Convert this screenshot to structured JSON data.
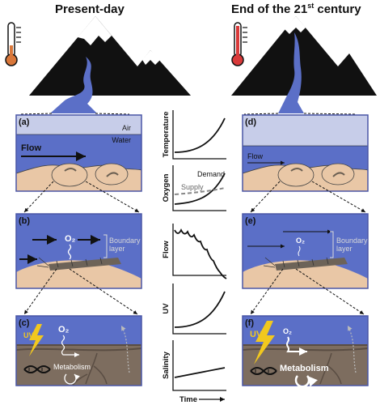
{
  "titles": {
    "left": "Present-day",
    "right_main": "End of the 21",
    "right_sup": "st",
    "right_tail": " century"
  },
  "panels": {
    "a": "(a)",
    "b": "(b)",
    "c": "(c)",
    "d": "(d)",
    "e": "(e)",
    "f": "(f)"
  },
  "labels": {
    "air": "Air",
    "water": "Water",
    "flow": "Flow",
    "o2": "O₂",
    "boundary_layer_1": "Boundary",
    "boundary_layer_2": "layer",
    "uv": "UV",
    "metabolism": "Metabolism",
    "demand": "Demand",
    "supply": "Supply"
  },
  "charts": [
    {
      "id": "temperature",
      "ylabel": "Temperature",
      "trend": "increasing-accelerating"
    },
    {
      "id": "oxygen",
      "ylabel": "Oxygen",
      "trend": "demand-rising-supply-flat"
    },
    {
      "id": "flow",
      "ylabel": "Flow",
      "trend": "decreasing-oscillating"
    },
    {
      "id": "uv",
      "ylabel": "UV",
      "trend": "increasing-accelerating"
    },
    {
      "id": "salinity",
      "ylabel": "Salinity",
      "trend": "increasing-linear"
    }
  ],
  "xlabel": "Time",
  "colors": {
    "water": "#5b6fc7",
    "water_light": "#c7cde9",
    "sediment": "#7d6d5f",
    "sand": "#e9c7a6",
    "uv": "#f2c81e",
    "frame": "#4a56a6"
  },
  "icons": [
    "thermometer-cold-icon",
    "thermometer-hot-icon",
    "lightning-icon",
    "dna-icon",
    "refresh-arrow-icon",
    "mountain-icon",
    "larva-icon"
  ]
}
